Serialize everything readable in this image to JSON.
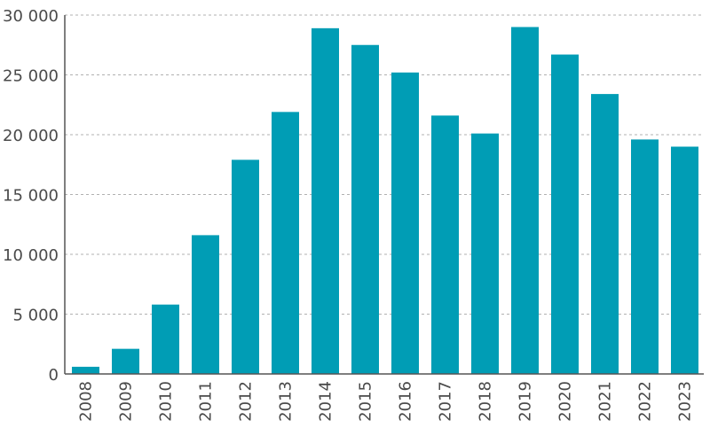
{
  "chart_data": {
    "type": "bar",
    "title": "",
    "xlabel": "",
    "ylabel": "",
    "categories": [
      "2008",
      "2009",
      "2010",
      "2011",
      "2012",
      "2013",
      "2014",
      "2015",
      "2016",
      "2017",
      "2018",
      "2019",
      "2020",
      "2021",
      "2022",
      "2023"
    ],
    "values": [
      600,
      2100,
      5800,
      11600,
      17900,
      21900,
      28900,
      27500,
      25200,
      21600,
      20100,
      29000,
      26700,
      23400,
      19600,
      19000
    ],
    "ylim": [
      0,
      30000
    ],
    "yticks": [
      0,
      5000,
      10000,
      15000,
      20000,
      25000,
      30000
    ],
    "ytick_labels": [
      "0",
      "5 000",
      "10 000",
      "15 000",
      "20 000",
      "25 000",
      "30 000"
    ],
    "grid": "horizontal dashed",
    "legend": "none",
    "colors": {
      "bar": "#009db5",
      "axis": "#555555",
      "grid": "#b0b0b0"
    }
  }
}
